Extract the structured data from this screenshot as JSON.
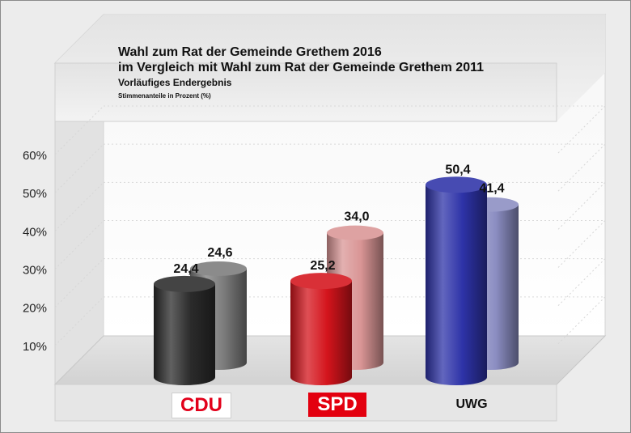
{
  "chart_data": {
    "type": "bar",
    "title": "Wahl zum Rat der Gemeinde Grethem 2016",
    "subtitle": "im Vergleich mit Wahl zum Rat der Gemeinde Grethem 2011",
    "note1": "Vorläufiges Endergebnis",
    "note2": "Stimmenanteile in Prozent (%)",
    "categories": [
      "CDU",
      "SPD",
      "UWG"
    ],
    "series": [
      {
        "values": [
          24.4,
          25.2,
          50.4
        ],
        "labels": [
          "24,4",
          "25,2",
          "50,4"
        ]
      },
      {
        "values": [
          24.6,
          34.0,
          41.4
        ],
        "labels": [
          "24,6",
          "34,0",
          "41,4"
        ]
      }
    ],
    "ylim": [
      0,
      60
    ],
    "yticks": [
      "10%",
      "20%",
      "30%",
      "40%",
      "50%",
      "60%"
    ],
    "grid": true,
    "colors": {
      "2016": [
        "#2b2b2b",
        "#d4141c",
        "#2e33a8"
      ],
      "2011": [
        "#7b7b7b",
        "#d99595",
        "#8b8dc2"
      ]
    }
  }
}
